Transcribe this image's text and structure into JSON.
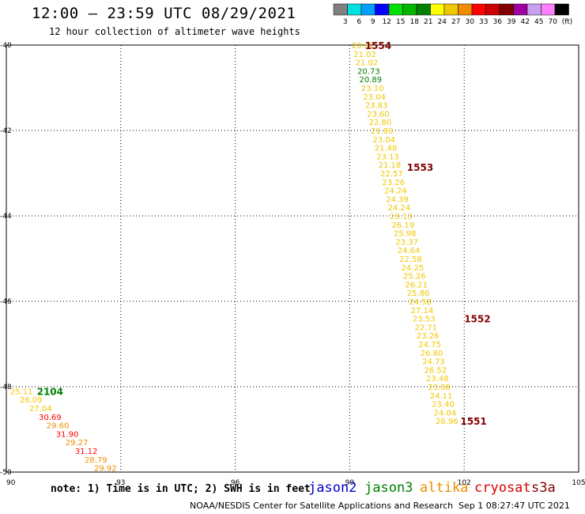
{
  "header": {
    "title": "12:00 – 23:59 UTC 08/29/2021",
    "subtitle": "12 hour collection of altimeter wave heights"
  },
  "colorbar": {
    "unit": "(ft)",
    "bins": [
      {
        "label": "3",
        "color": "#808080"
      },
      {
        "label": "6",
        "color": "#00e0e0"
      },
      {
        "label": "9",
        "color": "#00a0ff"
      },
      {
        "label": "12",
        "color": "#0000ff"
      },
      {
        "label": "15",
        "color": "#00e000"
      },
      {
        "label": "18",
        "color": "#00b400"
      },
      {
        "label": "21",
        "color": "#008000"
      },
      {
        "label": "24",
        "color": "#ffff00"
      },
      {
        "label": "27",
        "color": "#f0c800"
      },
      {
        "label": "30",
        "color": "#f08c00"
      },
      {
        "label": "33",
        "color": "#ff0000"
      },
      {
        "label": "36",
        "color": "#cc0000"
      },
      {
        "label": "39",
        "color": "#800000"
      },
      {
        "label": "42",
        "color": "#a000a0"
      },
      {
        "label": "45",
        "color": "#c8a0f0"
      },
      {
        "label": "70",
        "color": "#ff80ff"
      },
      {
        "label": "",
        "color": "#000000"
      }
    ]
  },
  "chart_data": {
    "type": "scatter",
    "x_ticks": [
      "90",
      "93",
      "96",
      "99",
      "102",
      "105"
    ],
    "y_ticks": [
      "-40",
      "-42",
      "-44",
      "-46",
      "-48",
      "-50"
    ],
    "xlim": [
      90,
      105
    ],
    "ylim": [
      -50,
      -40
    ],
    "grid": true,
    "tracks": [
      {
        "satellite": "altika",
        "points": [
          {
            "x": 99.05,
            "y": -40.0,
            "v": "20.62",
            "c": "#f0c800"
          },
          {
            "x": 99.1,
            "y": -40.2,
            "v": "21.02",
            "c": "#f0c800"
          },
          {
            "x": 99.15,
            "y": -40.4,
            "v": "21.02",
            "c": "#f0c800"
          },
          {
            "x": 99.2,
            "y": -40.6,
            "v": "20.73",
            "c": "#008000"
          },
          {
            "x": 99.25,
            "y": -40.8,
            "v": "20.89",
            "c": "#008000"
          },
          {
            "x": 99.3,
            "y": -41.0,
            "v": "23.10",
            "c": "#f0c800"
          },
          {
            "x": 99.35,
            "y": -41.2,
            "v": "23.04",
            "c": "#f0c800"
          },
          {
            "x": 99.4,
            "y": -41.4,
            "v": "23.83",
            "c": "#f0c800"
          },
          {
            "x": 99.45,
            "y": -41.6,
            "v": "23.60",
            "c": "#f0c800"
          },
          {
            "x": 99.5,
            "y": -41.8,
            "v": "22.80",
            "c": "#f0c800"
          },
          {
            "x": 99.55,
            "y": -42.0,
            "v": "21.89",
            "c": "#f0c800"
          },
          {
            "x": 99.6,
            "y": -42.2,
            "v": "23.04",
            "c": "#f0c800"
          },
          {
            "x": 99.65,
            "y": -42.4,
            "v": "21.48",
            "c": "#f0c800"
          },
          {
            "x": 99.7,
            "y": -42.6,
            "v": "23.13",
            "c": "#f0c800"
          },
          {
            "x": 99.75,
            "y": -42.8,
            "v": "21.18",
            "c": "#f0c800"
          },
          {
            "x": 99.8,
            "y": -43.0,
            "v": "22.57",
            "c": "#f0c800"
          },
          {
            "x": 99.85,
            "y": -43.2,
            "v": "23.26",
            "c": "#f0c800"
          },
          {
            "x": 99.9,
            "y": -43.4,
            "v": "24.24",
            "c": "#f0c800"
          },
          {
            "x": 99.95,
            "y": -43.6,
            "v": "24.39",
            "c": "#f0c800"
          },
          {
            "x": 100.0,
            "y": -43.8,
            "v": "24.24",
            "c": "#f0c800"
          },
          {
            "x": 100.05,
            "y": -44.0,
            "v": "23.13",
            "c": "#f0c800"
          },
          {
            "x": 100.1,
            "y": -44.2,
            "v": "26.19",
            "c": "#f0c800"
          },
          {
            "x": 100.15,
            "y": -44.4,
            "v": "25.98",
            "c": "#f0c800"
          },
          {
            "x": 100.2,
            "y": -44.6,
            "v": "23.37",
            "c": "#f0c800"
          },
          {
            "x": 100.25,
            "y": -44.8,
            "v": "24.64",
            "c": "#f0c800"
          },
          {
            "x": 100.3,
            "y": -45.0,
            "v": "22.58",
            "c": "#f0c800"
          },
          {
            "x": 100.35,
            "y": -45.2,
            "v": "24.25",
            "c": "#f0c800"
          },
          {
            "x": 100.4,
            "y": -45.4,
            "v": "25.26",
            "c": "#f0c800"
          },
          {
            "x": 100.45,
            "y": -45.6,
            "v": "26.21",
            "c": "#f0c800"
          },
          {
            "x": 100.5,
            "y": -45.8,
            "v": "25.86",
            "c": "#f0c800"
          },
          {
            "x": 100.55,
            "y": -46.0,
            "v": "24.58",
            "c": "#f0c800"
          },
          {
            "x": 100.6,
            "y": -46.2,
            "v": "27.14",
            "c": "#f0c800"
          },
          {
            "x": 100.65,
            "y": -46.4,
            "v": "23.53",
            "c": "#f0c800"
          },
          {
            "x": 100.7,
            "y": -46.6,
            "v": "22.71",
            "c": "#f0c800"
          },
          {
            "x": 100.75,
            "y": -46.8,
            "v": "23.26",
            "c": "#f0c800"
          },
          {
            "x": 100.8,
            "y": -47.0,
            "v": "24.75",
            "c": "#f0c800"
          },
          {
            "x": 100.85,
            "y": -47.2,
            "v": "26.80",
            "c": "#f0c800"
          },
          {
            "x": 100.9,
            "y": -47.4,
            "v": "24.73",
            "c": "#f0c800"
          },
          {
            "x": 100.95,
            "y": -47.6,
            "v": "26.52",
            "c": "#f0c800"
          },
          {
            "x": 101.0,
            "y": -47.8,
            "v": "23.48",
            "c": "#f0c800"
          },
          {
            "x": 101.05,
            "y": -48.0,
            "v": "23.88",
            "c": "#f0c800"
          },
          {
            "x": 101.1,
            "y": -48.2,
            "v": "24.11",
            "c": "#f0c800"
          },
          {
            "x": 101.15,
            "y": -48.4,
            "v": "23.40",
            "c": "#f0c800"
          },
          {
            "x": 101.2,
            "y": -48.6,
            "v": "24.04",
            "c": "#f0c800"
          },
          {
            "x": 101.25,
            "y": -48.8,
            "v": "26.96",
            "c": "#f0c800"
          }
        ]
      },
      {
        "satellite": "altika",
        "points": [
          {
            "x": 90.1,
            "y": -48.1,
            "v": "25.11",
            "c": "#f0c800"
          },
          {
            "x": 90.35,
            "y": -48.3,
            "v": "26.09",
            "c": "#f0c800"
          },
          {
            "x": 90.6,
            "y": -48.5,
            "v": "27.04",
            "c": "#f0c800"
          },
          {
            "x": 90.85,
            "y": -48.7,
            "v": "30.69",
            "c": "#ff0000"
          },
          {
            "x": 91.05,
            "y": -48.9,
            "v": "29.60",
            "c": "#f08c00"
          },
          {
            "x": 91.3,
            "y": -49.1,
            "v": "31.90",
            "c": "#ff0000"
          },
          {
            "x": 91.55,
            "y": -49.3,
            "v": "29.27",
            "c": "#f08c00"
          },
          {
            "x": 91.8,
            "y": -49.5,
            "v": "31.12",
            "c": "#ff0000"
          },
          {
            "x": 92.05,
            "y": -49.7,
            "v": "28.79",
            "c": "#f08c00"
          },
          {
            "x": 92.3,
            "y": -49.9,
            "v": "29.92",
            "c": "#f08c00"
          }
        ]
      }
    ],
    "time_labels": [
      {
        "x": 99.4,
        "y": -40.0,
        "text": "1554",
        "c": "#800000"
      },
      {
        "x": 100.5,
        "y": -42.85,
        "text": "1553",
        "c": "#800000"
      },
      {
        "x": 102.0,
        "y": -46.4,
        "text": "1552",
        "c": "#800000"
      },
      {
        "x": 101.9,
        "y": -48.8,
        "text": "1551",
        "c": "#800000"
      },
      {
        "x": 90.8,
        "y": -48.1,
        "text": "2104",
        "c": "#008000"
      }
    ]
  },
  "footer": {
    "note": "note: 1) Time is in UTC; 2) SWH is in feet",
    "satellites": [
      {
        "name": "jason2",
        "color": "#0000cc"
      },
      {
        "name": "jason3",
        "color": "#008000"
      },
      {
        "name": "altika",
        "color": "#f08c00"
      },
      {
        "name": "cryosat",
        "color": "#dd0000"
      },
      {
        "name": "s3a",
        "color": "#800000"
      }
    ],
    "credit": "NOAA/NESDIS Center for Satellite Applications and Research",
    "generated": "Sep  1 08:27:47 UTC 2021"
  }
}
